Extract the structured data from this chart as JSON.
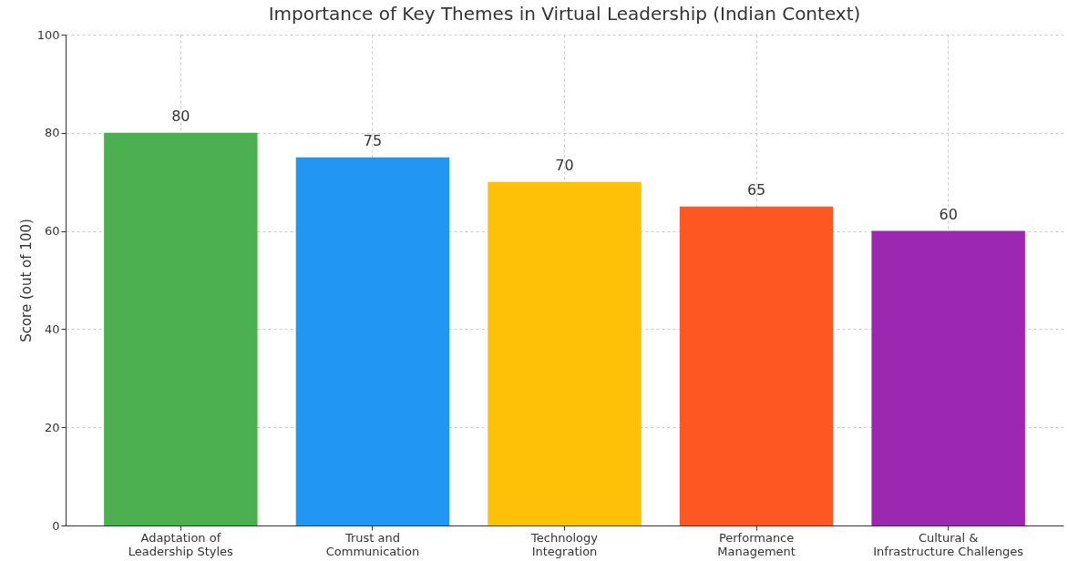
{
  "chart_data": {
    "type": "bar",
    "title": "Importance of Key Themes in Virtual Leadership (Indian Context)",
    "ylabel": "Score (out of 100)",
    "categories": [
      "Adaptation of\nLeadership Styles",
      "Trust and\nCommunication",
      "Technology\nIntegration",
      "Performance\nManagement",
      "Cultural &\nInfrastructure Challenges"
    ],
    "values": [
      80,
      75,
      70,
      65,
      60
    ],
    "colors": [
      "#4caf50",
      "#2196f3",
      "#ffc107",
      "#ff5722",
      "#9c27b0"
    ],
    "ylim": [
      0,
      100
    ],
    "yticks": [
      0,
      20,
      40,
      60,
      80,
      100
    ],
    "grid": true,
    "data_labels": true
  }
}
